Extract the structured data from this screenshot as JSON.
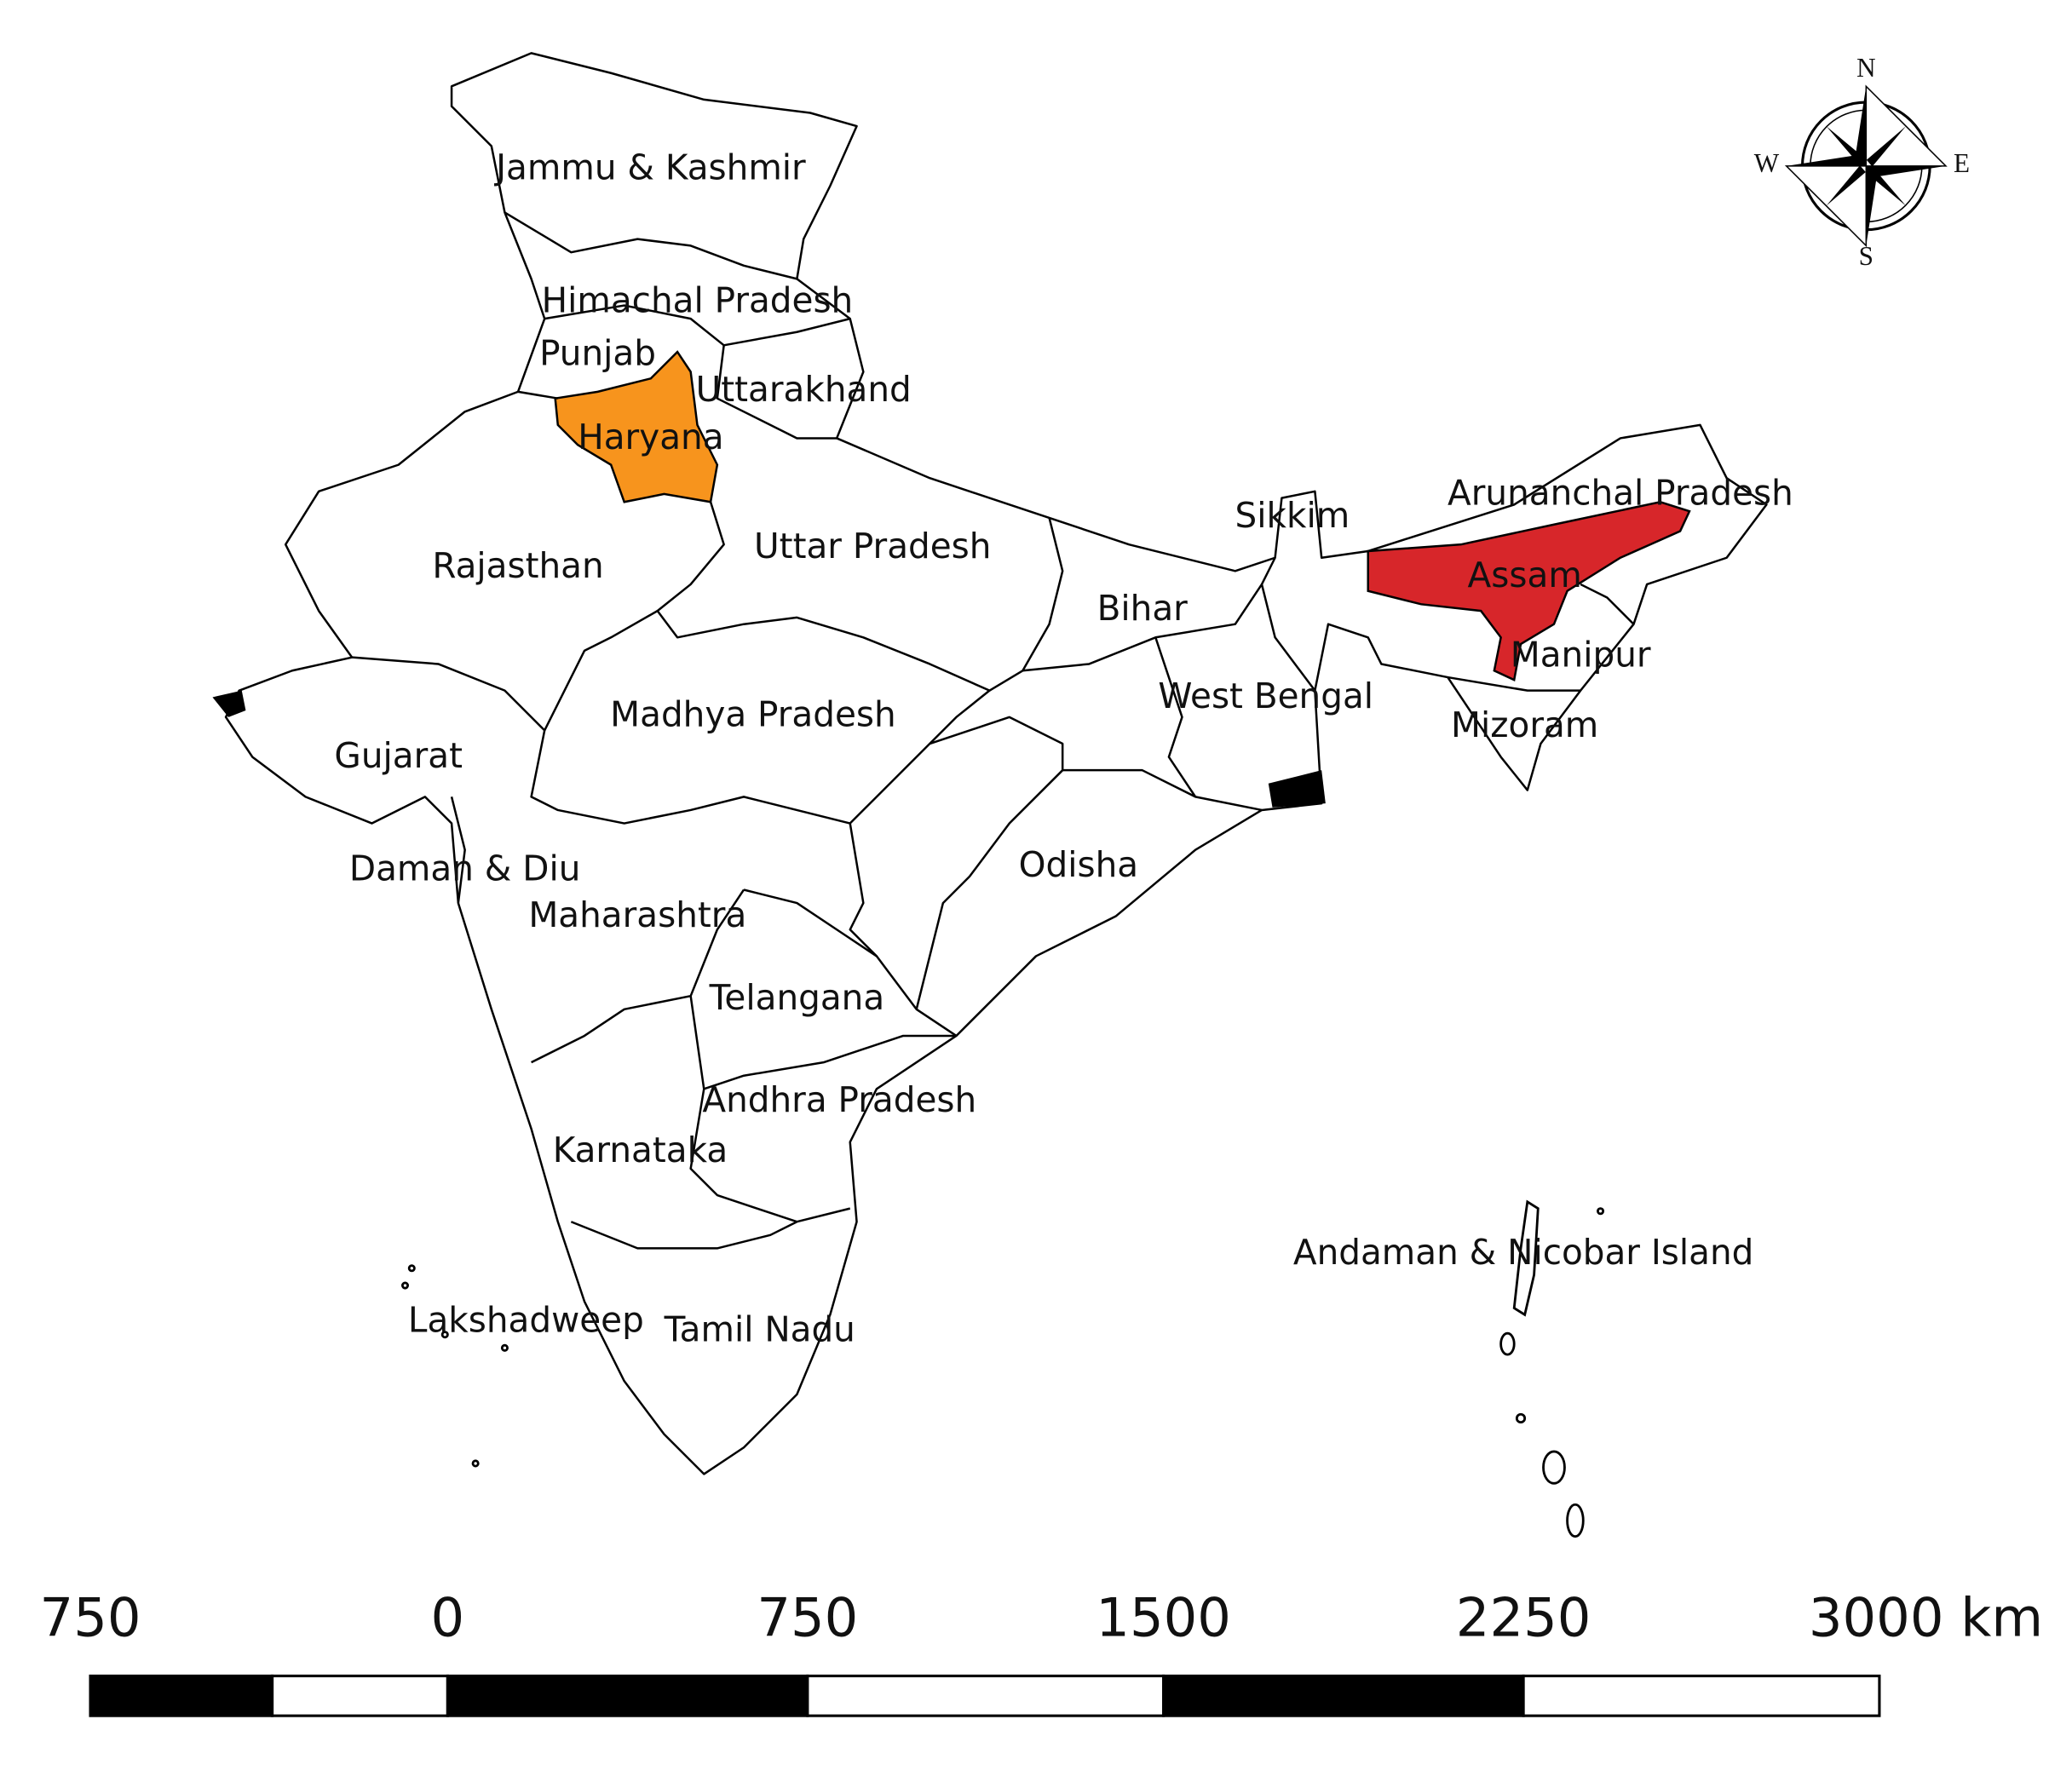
{
  "map": {
    "states": [
      {
        "label": "Jammu & Kashmir"
      },
      {
        "label": "Himachal Pradesh"
      },
      {
        "label": "Punjab"
      },
      {
        "label": "Uttarakhand"
      },
      {
        "label": "Haryana"
      },
      {
        "label": "Rajasthan"
      },
      {
        "label": "Uttar Pradesh"
      },
      {
        "label": "Sikkim"
      },
      {
        "label": "Arunanchal Pradesh"
      },
      {
        "label": "Assam"
      },
      {
        "label": "Bihar"
      },
      {
        "label": "Manipur"
      },
      {
        "label": "West Bengal"
      },
      {
        "label": "Mizoram"
      },
      {
        "label": "Madhya Pradesh"
      },
      {
        "label": "Gujarat"
      },
      {
        "label": "Odisha"
      },
      {
        "label": "Daman & Diu"
      },
      {
        "label": "Maharashtra"
      },
      {
        "label": "Telangana"
      },
      {
        "label": "Andhra Pradesh"
      },
      {
        "label": "Karnataka"
      },
      {
        "label": "Andaman & Nicobar Island"
      },
      {
        "label": "Lakshadweep"
      },
      {
        "label": "Tamil Nadu"
      }
    ],
    "compass": {
      "n": "N",
      "e": "E",
      "s": "S",
      "w": "W"
    },
    "scale_bar": {
      "labels": [
        "750",
        "0",
        "750",
        "1500",
        "2250",
        "3000 km"
      ]
    }
  }
}
